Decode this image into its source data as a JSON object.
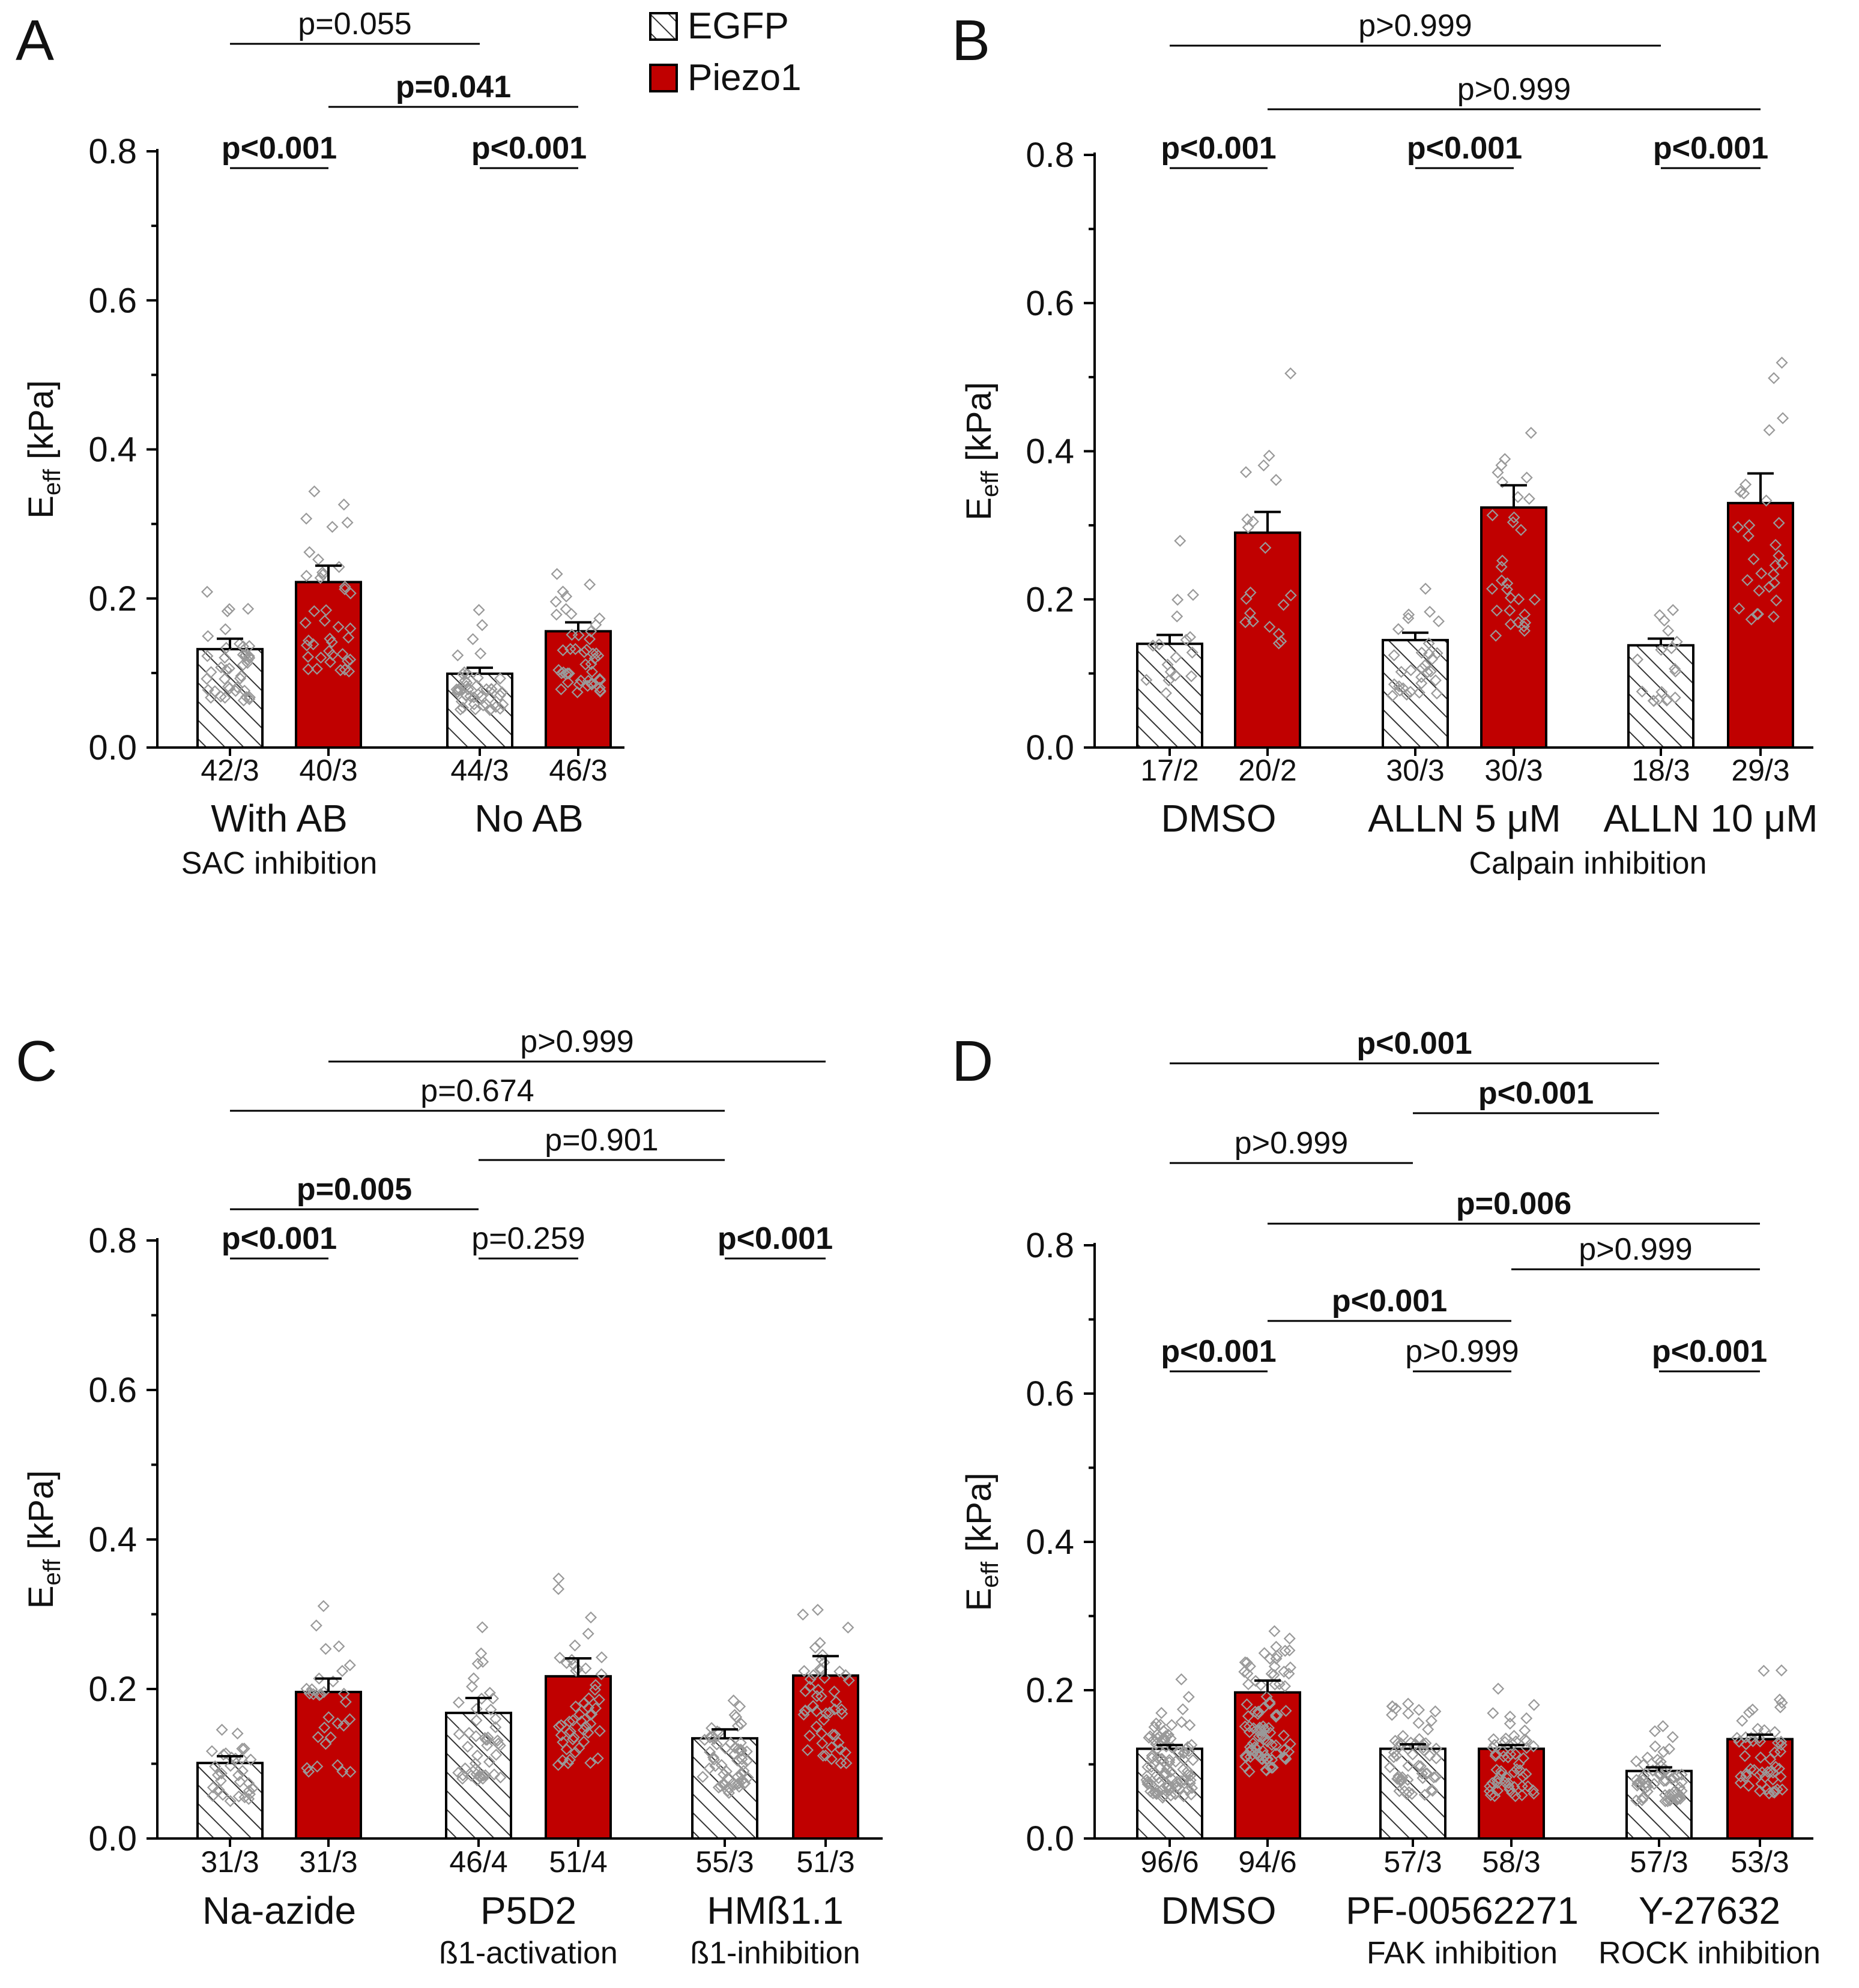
{
  "legend": [
    {
      "name": "EGFP",
      "fill": "hatch"
    },
    {
      "name": "Piezo1",
      "fill": "#c00000"
    }
  ],
  "colors": {
    "piezo": "#c00000",
    "egfp_hatch": "#333333",
    "point": "#999999",
    "axis": "#000000"
  },
  "y_axis": {
    "label_main": "E",
    "label_sub": "eff",
    "label_unit": " [kPa]",
    "ticks": [
      "0.0",
      "0.2",
      "0.4",
      "0.6",
      "0.8"
    ]
  },
  "chart_data": [
    {
      "panel": "A",
      "type": "bar",
      "ylim": [
        0,
        0.8
      ],
      "series": [
        {
          "name": "EGFP",
          "values": [
            0.132,
            0.099
          ]
        },
        {
          "name": "Piezo1",
          "values": [
            0.222,
            0.156
          ]
        }
      ],
      "bars": [
        {
          "series": "EGFP",
          "value": 0.132,
          "err": 0.014,
          "count": "42/3",
          "group": 0,
          "n": 42
        },
        {
          "series": "Piezo1",
          "value": 0.222,
          "err": 0.022,
          "count": "40/3",
          "group": 0,
          "n": 40
        },
        {
          "series": "EGFP",
          "value": 0.099,
          "err": 0.008,
          "count": "44/3",
          "group": 1,
          "n": 44
        },
        {
          "series": "Piezo1",
          "value": 0.156,
          "err": 0.012,
          "count": "46/3",
          "group": 1,
          "n": 46
        }
      ],
      "groups": [
        {
          "label": "With AB",
          "sub": "SAC inhibition"
        },
        {
          "label": "No AB",
          "sub": ""
        }
      ],
      "brackets": [
        {
          "from": 0,
          "to": 1,
          "text": "p<0.001",
          "bold": true,
          "level": 0
        },
        {
          "from": 2,
          "to": 3,
          "text": "p<0.001",
          "bold": true,
          "level": 0
        },
        {
          "from": 1,
          "to": 3,
          "text": "p=0.041",
          "bold": true,
          "level": 1
        },
        {
          "from": 0,
          "to": 2,
          "text": "p=0.055",
          "bold": false,
          "level": 2
        }
      ]
    },
    {
      "panel": "B",
      "type": "bar",
      "ylim": [
        0,
        0.8
      ],
      "series": [
        {
          "name": "EGFP",
          "values": [
            0.14,
            0.145,
            0.138
          ]
        },
        {
          "name": "Piezo1",
          "values": [
            0.29,
            0.324,
            0.33
          ]
        }
      ],
      "bars": [
        {
          "series": "EGFP",
          "value": 0.14,
          "err": 0.012,
          "count": "17/2",
          "group": 0,
          "n": 17
        },
        {
          "series": "Piezo1",
          "value": 0.29,
          "err": 0.028,
          "count": "20/2",
          "group": 0,
          "n": 20
        },
        {
          "series": "EGFP",
          "value": 0.145,
          "err": 0.01,
          "count": "30/3",
          "group": 1,
          "n": 30
        },
        {
          "series": "Piezo1",
          "value": 0.324,
          "err": 0.03,
          "count": "30/3",
          "group": 1,
          "n": 30
        },
        {
          "series": "EGFP",
          "value": 0.138,
          "err": 0.009,
          "count": "18/3",
          "group": 2,
          "n": 18
        },
        {
          "series": "Piezo1",
          "value": 0.33,
          "err": 0.04,
          "count": "29/3",
          "group": 2,
          "n": 29
        }
      ],
      "groups": [
        {
          "label": "DMSO",
          "sub": ""
        },
        {
          "label": "ALLN 5 μM",
          "sub": ""
        },
        {
          "label": "ALLN 10 μM",
          "sub": ""
        }
      ],
      "group_caption": "Calpain inhibition",
      "brackets": [
        {
          "from": 0,
          "to": 1,
          "text": "p<0.001",
          "bold": true,
          "level": 0
        },
        {
          "from": 2,
          "to": 3,
          "text": "p<0.001",
          "bold": true,
          "level": 0
        },
        {
          "from": 4,
          "to": 5,
          "text": "p<0.001",
          "bold": true,
          "level": 0
        },
        {
          "from": 1,
          "to": 5,
          "text": "p>0.999",
          "bold": false,
          "level": 1
        },
        {
          "from": 0,
          "to": 4,
          "text": "p>0.999",
          "bold": false,
          "level": 2
        }
      ]
    },
    {
      "panel": "C",
      "type": "bar",
      "ylim": [
        0,
        0.8
      ],
      "series": [
        {
          "name": "EGFP",
          "values": [
            0.101,
            0.168,
            0.134
          ]
        },
        {
          "name": "Piezo1",
          "values": [
            0.196,
            0.217,
            0.218
          ]
        }
      ],
      "bars": [
        {
          "series": "EGFP",
          "value": 0.101,
          "err": 0.009,
          "count": "31/3",
          "group": 0,
          "n": 31
        },
        {
          "series": "Piezo1",
          "value": 0.196,
          "err": 0.018,
          "count": "31/3",
          "group": 0,
          "n": 31
        },
        {
          "series": "EGFP",
          "value": 0.168,
          "err": 0.02,
          "count": "46/4",
          "group": 1,
          "n": 46
        },
        {
          "series": "Piezo1",
          "value": 0.217,
          "err": 0.024,
          "count": "51/4",
          "group": 1,
          "n": 51
        },
        {
          "series": "EGFP",
          "value": 0.134,
          "err": 0.012,
          "count": "55/3",
          "group": 2,
          "n": 55
        },
        {
          "series": "Piezo1",
          "value": 0.218,
          "err": 0.026,
          "count": "51/3",
          "group": 2,
          "n": 51
        }
      ],
      "groups": [
        {
          "label": "Na-azide",
          "sub": ""
        },
        {
          "label": "P5D2",
          "sub": "ß1-activation"
        },
        {
          "label": "HMß1.1",
          "sub": "ß1-inhibition"
        }
      ],
      "brackets": [
        {
          "from": 0,
          "to": 1,
          "text": "p<0.001",
          "bold": true,
          "level": 0
        },
        {
          "from": 2,
          "to": 3,
          "text": "p=0.259",
          "bold": false,
          "level": 0
        },
        {
          "from": 4,
          "to": 5,
          "text": "p<0.001",
          "bold": true,
          "level": 0
        },
        {
          "from": 0,
          "to": 2,
          "text": "p=0.005",
          "bold": true,
          "level": 1
        },
        {
          "from": 2,
          "to": 4,
          "text": "p=0.901",
          "bold": false,
          "level": 2
        },
        {
          "from": 0,
          "to": 4,
          "text": "p=0.674",
          "bold": false,
          "level": 3
        },
        {
          "from": 1,
          "to": 5,
          "text": "p>0.999",
          "bold": false,
          "level": 4
        }
      ]
    },
    {
      "panel": "D",
      "type": "bar",
      "ylim": [
        0,
        0.8
      ],
      "series": [
        {
          "name": "EGFP",
          "values": [
            0.121,
            0.121,
            0.091
          ]
        },
        {
          "name": "Piezo1",
          "values": [
            0.197,
            0.121,
            0.134
          ]
        }
      ],
      "bars": [
        {
          "series": "EGFP",
          "value": 0.121,
          "err": 0.005,
          "count": "96/6",
          "group": 0,
          "n": 96
        },
        {
          "series": "Piezo1",
          "value": 0.197,
          "err": 0.016,
          "count": "94/6",
          "group": 0,
          "n": 94
        },
        {
          "series": "EGFP",
          "value": 0.121,
          "err": 0.006,
          "count": "57/3",
          "group": 1,
          "n": 57
        },
        {
          "series": "Piezo1",
          "value": 0.121,
          "err": 0.005,
          "count": "58/3",
          "group": 1,
          "n": 58
        },
        {
          "series": "EGFP",
          "value": 0.091,
          "err": 0.005,
          "count": "57/3",
          "group": 2,
          "n": 57
        },
        {
          "series": "Piezo1",
          "value": 0.134,
          "err": 0.006,
          "count": "53/3",
          "group": 2,
          "n": 53
        }
      ],
      "groups": [
        {
          "label": "DMSO",
          "sub": ""
        },
        {
          "label": "PF-00562271",
          "sub": "FAK inhibition"
        },
        {
          "label": "Y-27632",
          "sub": "ROCK inhibition"
        }
      ],
      "brackets": [
        {
          "from": 0,
          "to": 1,
          "text": "p<0.001",
          "bold": true,
          "level": 0
        },
        {
          "from": 2,
          "to": 3,
          "text": "p>0.999",
          "bold": false,
          "level": 0
        },
        {
          "from": 4,
          "to": 5,
          "text": "p<0.001",
          "bold": true,
          "level": 0
        },
        {
          "from": 1,
          "to": 3,
          "text": "p<0.001",
          "bold": true,
          "level": 1
        },
        {
          "from": 3,
          "to": 5,
          "text": "p>0.999",
          "bold": false,
          "level": 2
        },
        {
          "from": 1,
          "to": 5,
          "text": "p=0.006",
          "bold": true,
          "level": 3
        },
        {
          "from": 0,
          "to": 2,
          "text": "p>0.999",
          "bold": false,
          "level": 4
        },
        {
          "from": 2,
          "to": 4,
          "text": "p<0.001",
          "bold": true,
          "level": 5
        },
        {
          "from": 0,
          "to": 4,
          "text": "p<0.001",
          "bold": true,
          "level": 6
        }
      ]
    }
  ]
}
